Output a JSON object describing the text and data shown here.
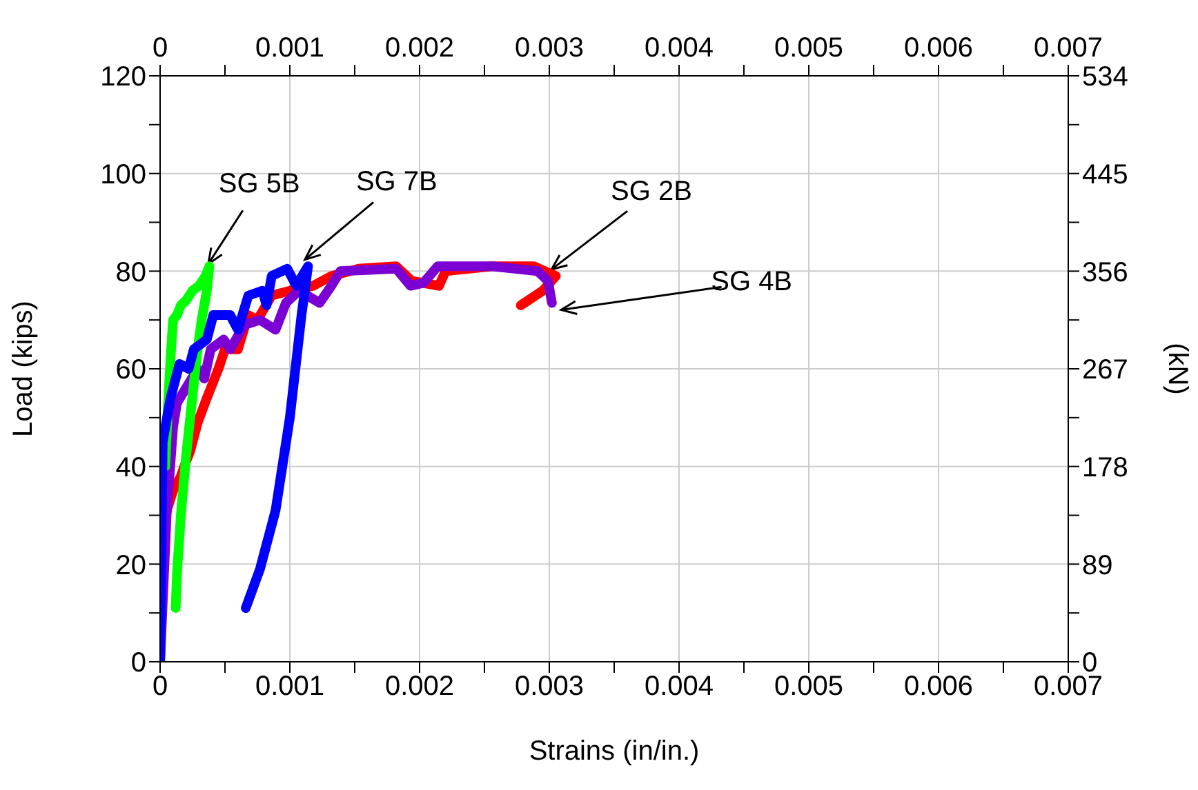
{
  "chart_data": {
    "type": "line",
    "xlabel": "Strains (in/in.)",
    "ylabel": "Load (kips)",
    "y2label": "(kN)",
    "xlim": [
      0,
      0.007
    ],
    "xticks": [
      0,
      {
        "value": 0.0005,
        "label": null
      },
      0.001,
      {
        "value": 0.0015,
        "label": null
      },
      0.002,
      {
        "value": 0.0025,
        "label": null
      },
      0.003,
      {
        "value": 0.0035,
        "label": null
      },
      0.004,
      {
        "value": 0.0045,
        "label": null
      },
      0.005,
      {
        "value": 0.0055,
        "label": null
      },
      0.006,
      {
        "value": 0.0065,
        "label": null
      },
      0.007
    ],
    "x2lim": [
      0,
      0.007
    ],
    "x2ticks": [
      0,
      {
        "value": 0.0005,
        "label": null
      },
      0.001,
      {
        "value": 0.0015,
        "label": null
      },
      0.002,
      {
        "value": 0.0025,
        "label": null
      },
      0.003,
      {
        "value": 0.0035,
        "label": null
      },
      0.004,
      {
        "value": 0.0045,
        "label": null
      },
      0.005,
      {
        "value": 0.0055,
        "label": null
      },
      0.006,
      {
        "value": 0.0065,
        "label": null
      },
      0.007
    ],
    "ylim": [
      0,
      120
    ],
    "yticks": [
      0,
      {
        "value": 10,
        "label": null
      },
      20,
      {
        "value": 30,
        "label": null
      },
      40,
      {
        "value": 50,
        "label": null
      },
      60,
      {
        "value": 70,
        "label": null
      },
      80,
      {
        "value": 90,
        "label": null
      },
      100,
      {
        "value": 110,
        "label": null
      },
      120
    ],
    "y2lim": [
      0,
      534
    ],
    "y2ticks": [
      0,
      {
        "value": 44.5,
        "label": null
      },
      89,
      {
        "value": 133.5,
        "label": null
      },
      178,
      {
        "value": 222.5,
        "label": null
      },
      267,
      {
        "value": 311.5,
        "label": null
      },
      356,
      {
        "value": 400.5,
        "label": null
      },
      445,
      {
        "value": 489.5,
        "label": null
      },
      534
    ],
    "grid": true,
    "marker": "none",
    "line_style": "solid",
    "series": [
      {
        "color": "#ff0000",
        "x": [
          0,
          2e-05,
          4e-05,
          0.0001,
          0.00016,
          0.0002,
          0.00023,
          0.00029,
          0.00036,
          0.00045,
          0.0005,
          0.0006,
          0.00068,
          0.00075,
          0.00086,
          0.001,
          0.00118,
          0.00132,
          0.00153,
          0.00182,
          0.00194,
          0.00215,
          0.0022,
          0.00256,
          0.00288,
          0.00305,
          0.00295,
          0.00278
        ],
        "values": [
          0,
          20,
          30,
          35,
          38,
          41,
          43,
          49,
          54,
          60,
          64,
          64,
          71,
          70,
          75,
          76,
          77,
          79,
          80.5,
          81,
          78,
          77,
          80,
          81,
          81,
          79,
          76,
          73
        ]
      },
      {
        "color": "#7b00d4",
        "x": [
          0,
          5e-05,
          0.0001,
          0.00013,
          0.00029,
          0.00034,
          0.00039,
          0.00049,
          0.00054,
          0.00065,
          0.00077,
          0.00089,
          0.00097,
          0.00107,
          0.00123,
          0.00132,
          0.00139,
          0.00182,
          0.00193,
          0.00203,
          0.00214,
          0.00256,
          0.00291,
          0.00299,
          0.00302
        ],
        "values": [
          0,
          30,
          48,
          53,
          60,
          58,
          64,
          66,
          64,
          69,
          70,
          68,
          73.5,
          76,
          73.5,
          77,
          80,
          80.5,
          77,
          77.6,
          81,
          81,
          80,
          78,
          73.5
        ]
      },
      {
        "color": "#00ff00",
        "x": [
          4e-05,
          6e-05,
          8e-05,
          0.0001,
          0.00013,
          0.00016,
          0.0002,
          0.00025,
          0.0003,
          0.00035,
          0.00038,
          0.00036,
          0.00032,
          0.00028,
          0.00024,
          0.0002,
          0.00016,
          0.00013,
          0.00012
        ],
        "values": [
          40,
          52,
          62,
          70,
          71,
          73,
          74,
          76,
          77,
          79,
          81,
          76,
          70,
          62,
          52,
          42,
          30,
          18,
          11
        ]
      },
      {
        "color": "#0000ff",
        "x": [
          0,
          2e-05,
          8e-05,
          0.00015,
          0.00022,
          0.00026,
          0.00036,
          0.00041,
          0.00054,
          0.0006,
          0.00068,
          0.00079,
          0.00082,
          0.00086,
          0.00098,
          0.00105,
          0.00114,
          0.00109,
          0.001,
          0.00089,
          0.00077,
          0.00066
        ],
        "values": [
          0,
          45,
          54,
          61,
          60,
          64,
          66,
          71,
          71,
          68,
          75,
          76,
          73,
          79,
          80.5,
          77,
          81,
          71,
          50,
          31,
          19,
          11
        ]
      }
    ],
    "annotations": [
      {
        "text": "SG 5B",
        "x": 0.00036,
        "y": 81
      },
      {
        "text": "SG 7B",
        "x": 0.0011,
        "y": 82
      },
      {
        "text": "SG 2B",
        "x": 0.003,
        "y": 80
      },
      {
        "text": "SG 4B",
        "x": 0.00307,
        "y": 72
      }
    ]
  }
}
